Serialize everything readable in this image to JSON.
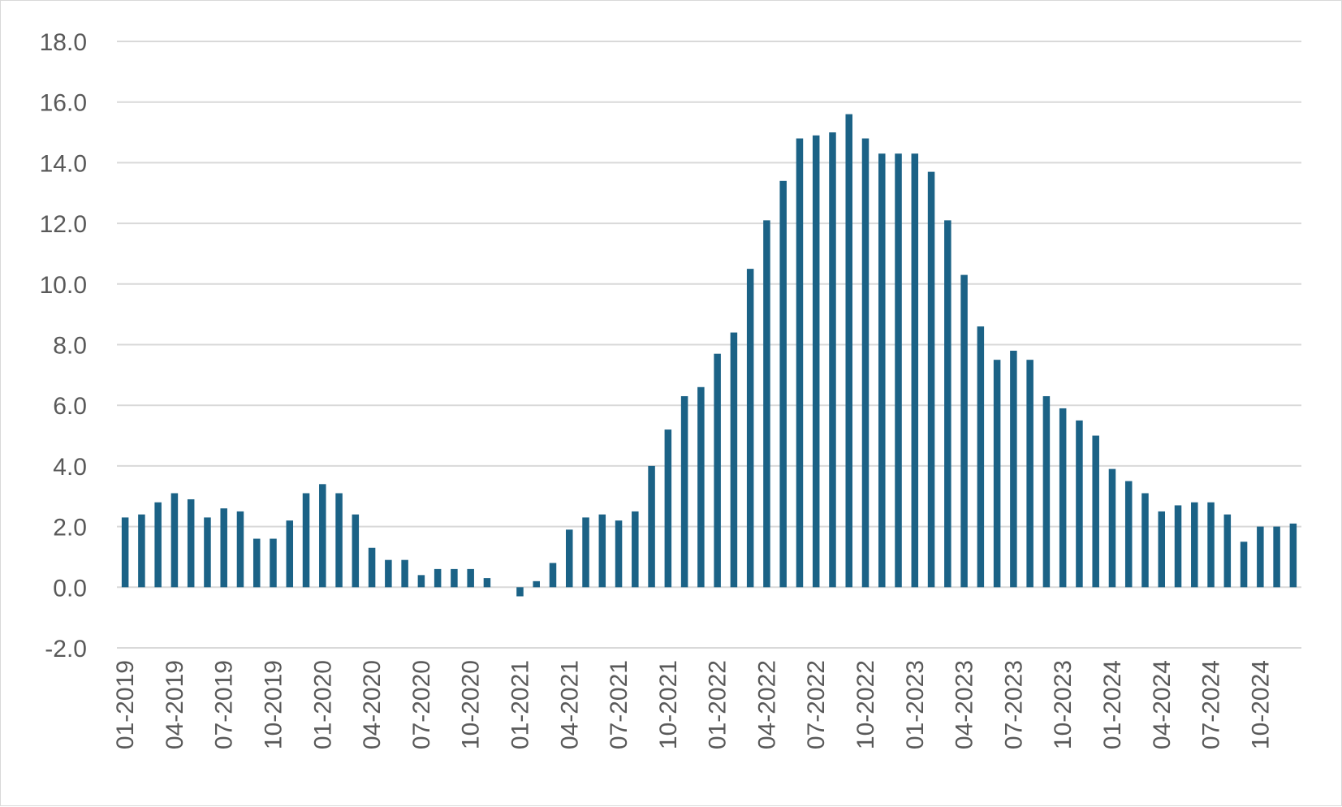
{
  "chart_data": {
    "type": "bar",
    "title": "",
    "xlabel": "",
    "ylabel": "",
    "ylim": [
      -2,
      18
    ],
    "y_ticks": [
      "18.0",
      "16.0",
      "14.0",
      "12.0",
      "10.0",
      "8.0",
      "6.0",
      "4.0",
      "2.0",
      "0.0",
      "-2.0"
    ],
    "x_tick_labels": [
      "01-2019",
      "04-2019",
      "07-2019",
      "10-2019",
      "01-2020",
      "04-2020",
      "07-2020",
      "10-2020",
      "01-2021",
      "04-2021",
      "07-2021",
      "10-2021",
      "01-2022",
      "04-2022",
      "07-2022",
      "10-2022",
      "01-2023",
      "04-2023",
      "07-2023",
      "10-2023",
      "01-2024",
      "04-2024",
      "07-2024",
      "10-2024"
    ],
    "grid": true,
    "legend": "none",
    "bar_color": "#1b6286",
    "categories": [
      "01-2019",
      "02-2019",
      "03-2019",
      "04-2019",
      "05-2019",
      "06-2019",
      "07-2019",
      "08-2019",
      "09-2019",
      "10-2019",
      "11-2019",
      "12-2019",
      "01-2020",
      "02-2020",
      "03-2020",
      "04-2020",
      "05-2020",
      "06-2020",
      "07-2020",
      "08-2020",
      "09-2020",
      "10-2020",
      "11-2020",
      "12-2020",
      "01-2021",
      "02-2021",
      "03-2021",
      "04-2021",
      "05-2021",
      "06-2021",
      "07-2021",
      "08-2021",
      "09-2021",
      "10-2021",
      "11-2021",
      "12-2021",
      "01-2022",
      "02-2022",
      "03-2022",
      "04-2022",
      "05-2022",
      "06-2022",
      "07-2022",
      "08-2022",
      "09-2022",
      "10-2022",
      "11-2022",
      "12-2022",
      "01-2023",
      "02-2023",
      "03-2023",
      "04-2023",
      "05-2023",
      "06-2023",
      "07-2023",
      "08-2023",
      "09-2023",
      "10-2023",
      "11-2023",
      "12-2023",
      "01-2024",
      "02-2024",
      "03-2024",
      "04-2024",
      "05-2024",
      "06-2024",
      "07-2024",
      "08-2024",
      "09-2024",
      "10-2024",
      "11-2024",
      "12-2024"
    ],
    "values": [
      2.3,
      2.4,
      2.8,
      3.1,
      2.9,
      2.3,
      2.6,
      2.5,
      1.6,
      1.6,
      2.2,
      3.1,
      3.4,
      3.1,
      2.4,
      1.3,
      0.9,
      0.9,
      0.4,
      0.6,
      0.6,
      0.6,
      0.3,
      0.0,
      -0.3,
      0.2,
      0.8,
      1.9,
      2.3,
      2.4,
      2.2,
      2.5,
      4.0,
      5.2,
      6.3,
      6.6,
      7.7,
      8.4,
      10.5,
      12.1,
      13.4,
      14.8,
      14.9,
      15.0,
      15.6,
      14.8,
      14.3,
      14.3,
      14.3,
      13.7,
      12.1,
      10.3,
      8.6,
      7.5,
      7.8,
      7.5,
      6.3,
      5.9,
      5.5,
      5.0,
      3.9,
      3.5,
      3.1,
      2.5,
      2.7,
      2.8,
      2.8,
      2.4,
      1.5,
      2.0,
      2.0,
      2.1
    ]
  }
}
